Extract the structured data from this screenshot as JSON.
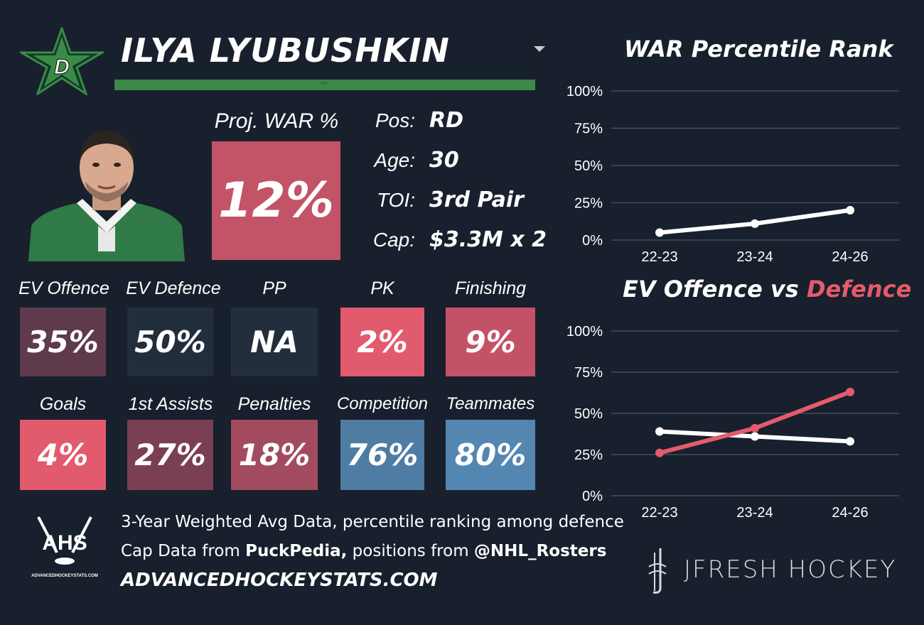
{
  "player": {
    "name": "ILYA LYUBUSHKIN",
    "team_logo_icon": "dallas-stars-logo",
    "bar_color": "#3c8a47"
  },
  "projection": {
    "label": "Proj. WAR %",
    "value": "12%",
    "color": "#c35366"
  },
  "info": [
    {
      "key": "Pos:",
      "value": "RD"
    },
    {
      "key": "Age:",
      "value": "30"
    },
    {
      "key": "TOI:",
      "value": "3rd Pair"
    },
    {
      "key": "Cap:",
      "value": "$3.3M x 2"
    }
  ],
  "stats_row1": [
    {
      "label": "EV Offence",
      "value": "35%",
      "color": "#5e3a4c"
    },
    {
      "label": "EV Defence",
      "value": "50%",
      "color": "#232e3d"
    },
    {
      "label": "PP",
      "value": "NA",
      "color": "#232e3d"
    },
    {
      "label": "PK",
      "value": "2%",
      "color": "#e25a6d"
    },
    {
      "label": "Finishing",
      "value": "9%",
      "color": "#c45266"
    }
  ],
  "stats_row2": [
    {
      "label": "Goals",
      "value": "4%",
      "color": "#e25a6d"
    },
    {
      "label": "1st Assists",
      "value": "27%",
      "color": "#7a3f52"
    },
    {
      "label": "Penalties",
      "value": "18%",
      "color": "#a24b5f"
    },
    {
      "label": "Competition",
      "value": "76%",
      "color": "#4f7ca3"
    },
    {
      "label": "Teammates",
      "value": "80%",
      "color": "#5486b2"
    }
  ],
  "footer": {
    "line1": "3-Year Weighted Avg Data, percentile ranking among defence",
    "line2_prefix": "Cap Data from ",
    "line2_source1": "PuckPedia,",
    "line2_middle": " positions from ",
    "line2_source2": "@NHL_Rosters",
    "site": "ADVANCEDHOCKEYSTATS.COM",
    "ahs_logo_text": "AHS",
    "ahs_logo_sub": "ADVANCEDHOCKEYSTATS.COM",
    "brand": "JFRESH HOCKEY"
  },
  "chart_data": [
    {
      "type": "line",
      "title": "WAR Percentile Rank",
      "categories": [
        "22-23",
        "23-24",
        "24-26"
      ],
      "series": [
        {
          "values": [
            5,
            11,
            20
          ],
          "color": "#ffffff"
        }
      ],
      "ylim": [
        0,
        100
      ],
      "yticks": [
        "0%",
        "25%",
        "50%",
        "75%",
        "100%"
      ],
      "grid": true
    },
    {
      "type": "line",
      "title_part1": "EV Offence vs ",
      "title_part2": "Defence",
      "categories": [
        "22-23",
        "23-24",
        "24-26"
      ],
      "series": [
        {
          "values": [
            39,
            36,
            33
          ],
          "color": "#ffffff"
        },
        {
          "values": [
            26,
            41,
            63
          ],
          "color": "#e55a6c"
        }
      ],
      "ylim": [
        0,
        100
      ],
      "yticks": [
        "0%",
        "25%",
        "50%",
        "75%",
        "100%"
      ],
      "grid": true
    }
  ]
}
